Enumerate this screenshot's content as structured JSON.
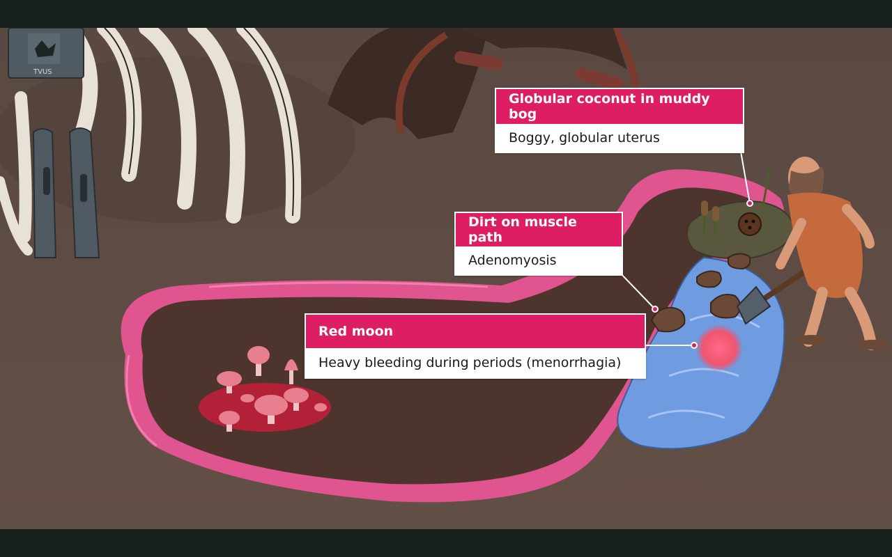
{
  "scene": {
    "colors": {
      "background": "#5e4c43",
      "uterus_wall": "#e0548f",
      "uterus_interior": "#4d342c",
      "water": "#6f9be0",
      "bog": "#59583f",
      "blood": "#c41e3a",
      "bones": "#e8e2d6",
      "callout_header": "#de1e64"
    },
    "signpost_text": "TVUS"
  },
  "callouts": {
    "coconut": {
      "title": "Globular coconut in muddy bog",
      "subtitle": "Boggy, globular uterus"
    },
    "dirt": {
      "title": "Dirt on muscle path",
      "subtitle": "Adenomyosis"
    },
    "moon": {
      "title": "Red moon",
      "subtitle": "Heavy bleeding during periods (menorrhagia)"
    }
  }
}
